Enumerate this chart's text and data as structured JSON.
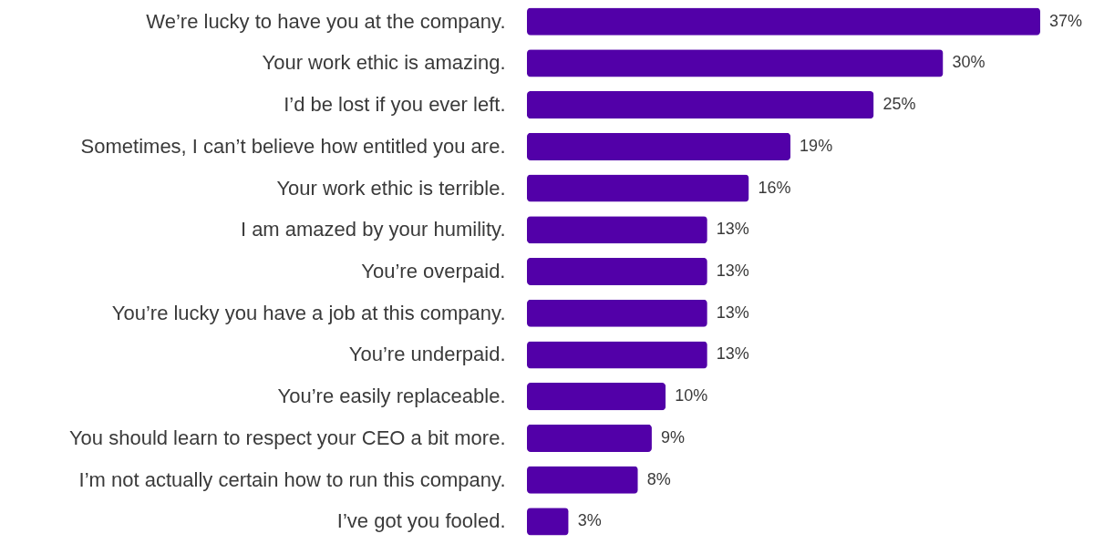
{
  "chart_data": {
    "type": "bar",
    "orientation": "horizontal",
    "categories": [
      "We’re lucky to have you at the company.",
      "Your work ethic is amazing.",
      "I’d be lost if you ever left.",
      "Sometimes, I can’t believe how entitled you are.",
      "Your work ethic is terrible.",
      "I am amazed by your humility.",
      "You’re overpaid.",
      "You’re lucky you have a job at this company.",
      "You’re underpaid.",
      "You’re easily replaceable.",
      "You should learn to respect your CEO a bit more.",
      "I’m not actually certain how to run this company.",
      "I’ve got you fooled."
    ],
    "values": [
      37,
      30,
      25,
      19,
      16,
      13,
      13,
      13,
      13,
      10,
      9,
      8,
      3
    ],
    "value_labels": [
      "37%",
      "30%",
      "25%",
      "19%",
      "16%",
      "13%",
      "13%",
      "13%",
      "13%",
      "10%",
      "9%",
      "8%",
      "3%"
    ],
    "color": "#5200a8",
    "grid": false
  }
}
